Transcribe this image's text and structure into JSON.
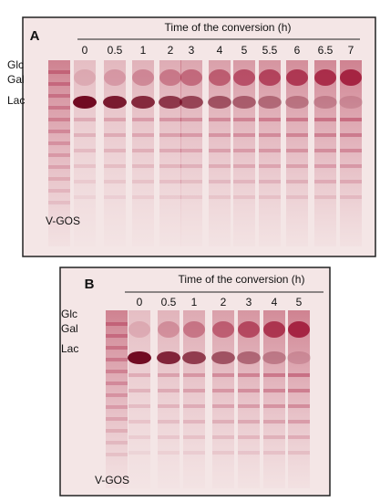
{
  "panels": [
    {
      "label": "A",
      "title": "Time of the conversion (h)",
      "lanes": [
        "0",
        "0.5",
        "1",
        "2",
        "3",
        "4",
        "5",
        "5.5",
        "6",
        "6.5",
        "7"
      ],
      "markers": [
        "Glc",
        "Gal",
        "Lac"
      ],
      "standard": "V-GOS"
    },
    {
      "label": "B",
      "title": "Time of the conversion (h)",
      "lanes": [
        "0",
        "0.5",
        "1",
        "2",
        "3",
        "4",
        "5"
      ],
      "markers": [
        "Glc",
        "Gal",
        "Lac"
      ],
      "standard": "V-GOS"
    }
  ]
}
